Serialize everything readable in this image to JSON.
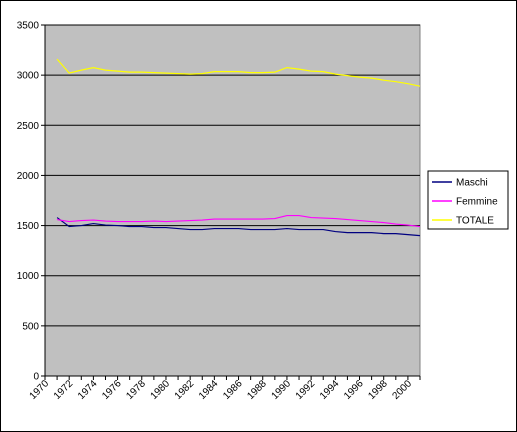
{
  "chart_data": {
    "type": "line",
    "title": "",
    "xlabel": "",
    "ylabel": "",
    "ylim": [
      0,
      3500
    ],
    "yticks": [
      0,
      500,
      1000,
      1500,
      2000,
      2500,
      3000,
      3500
    ],
    "xlim": [
      1970,
      2001
    ],
    "xticks": [
      1970,
      1972,
      1974,
      1976,
      1978,
      1980,
      1982,
      1984,
      1986,
      1988,
      1990,
      1992,
      1994,
      1996,
      1998,
      2000
    ],
    "grid": "horizontal",
    "plot_background": "#c0c0c0",
    "legend_position": "right",
    "x": [
      1971,
      1972,
      1973,
      1974,
      1975,
      1976,
      1977,
      1978,
      1979,
      1980,
      1981,
      1982,
      1983,
      1984,
      1985,
      1986,
      1987,
      1988,
      1989,
      1990,
      1991,
      1992,
      1993,
      1994,
      1995,
      1996,
      1997,
      1998,
      1999,
      2000,
      2001
    ],
    "series": [
      {
        "name": "Maschi",
        "color": "#000080",
        "values": [
          1580,
          1490,
          1500,
          1520,
          1505,
          1500,
          1490,
          1490,
          1480,
          1480,
          1470,
          1460,
          1460,
          1470,
          1470,
          1470,
          1460,
          1460,
          1460,
          1470,
          1460,
          1460,
          1460,
          1440,
          1430,
          1430,
          1430,
          1420,
          1420,
          1410,
          1400
        ]
      },
      {
        "name": "Femmine",
        "color": "#ff00ff",
        "values": [
          1560,
          1540,
          1550,
          1555,
          1545,
          1540,
          1540,
          1540,
          1545,
          1540,
          1545,
          1550,
          1555,
          1565,
          1565,
          1565,
          1565,
          1565,
          1570,
          1600,
          1600,
          1580,
          1575,
          1570,
          1560,
          1550,
          1540,
          1530,
          1515,
          1505,
          1490
        ]
      },
      {
        "name": "TOTALE",
        "color": "#ffff00",
        "values": [
          3160,
          3020,
          3050,
          3075,
          3050,
          3040,
          3030,
          3030,
          3025,
          3020,
          3015,
          3010,
          3015,
          3035,
          3035,
          3035,
          3025,
          3025,
          3030,
          3075,
          3060,
          3040,
          3035,
          3010,
          2995,
          2980,
          2970,
          2950,
          2935,
          2915,
          2890
        ]
      }
    ]
  }
}
